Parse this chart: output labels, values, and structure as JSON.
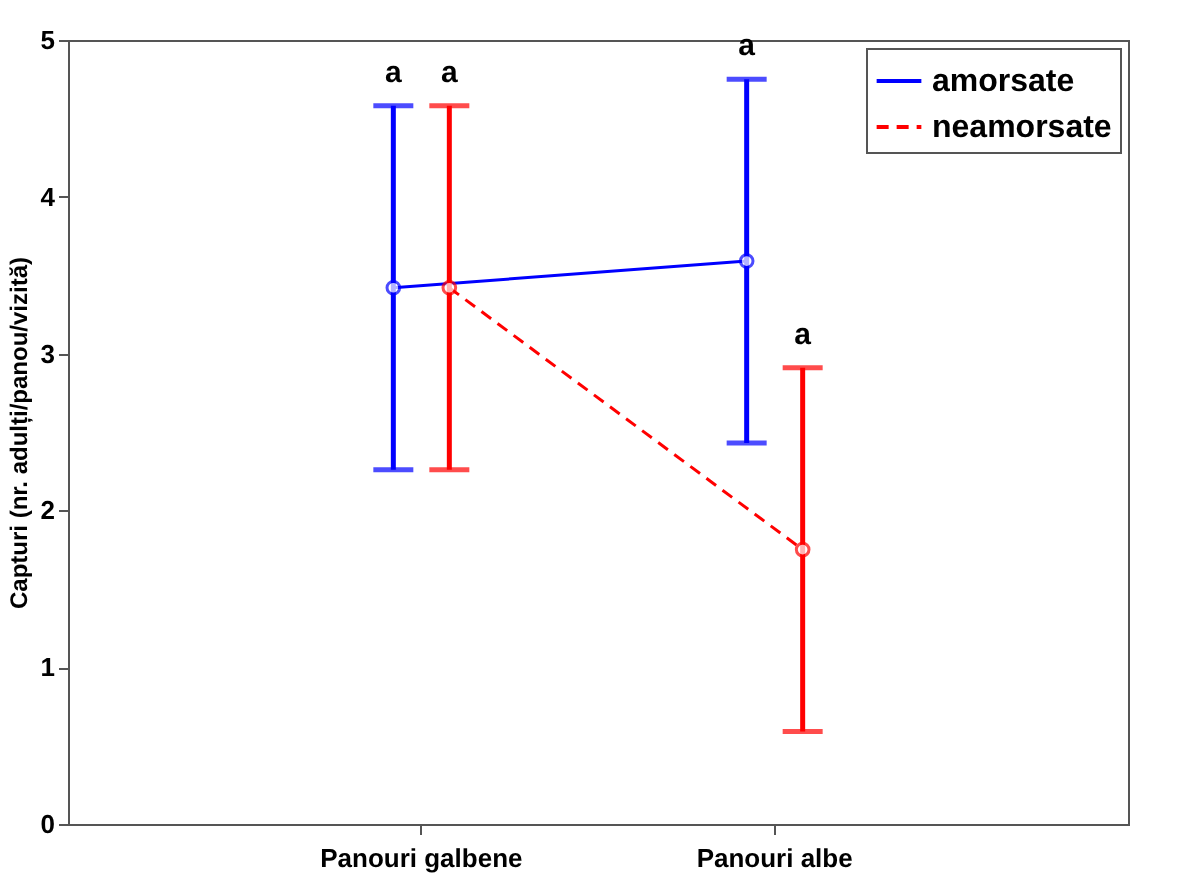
{
  "chart_data": {
    "type": "line",
    "ylabel": "Capturi (nr. adulți/panou/vizită)",
    "categories": [
      "Panouri galbene",
      "Panouri albe"
    ],
    "series": [
      {
        "name": "amorsate",
        "color": "#0000ff",
        "values": [
          3.42,
          3.59
        ],
        "errors": [
          1.16,
          1.16
        ],
        "line_style": "solid"
      },
      {
        "name": "neamorsate",
        "color": "#ff0000",
        "values": [
          3.42,
          1.75
        ],
        "errors": [
          1.16,
          1.16
        ],
        "line_style": "dashed"
      }
    ],
    "ylim": [
      0,
      5
    ],
    "yticks": [
      0,
      1,
      2,
      3,
      4,
      5
    ],
    "grid": false,
    "legend": "top right",
    "marker": "circle",
    "annotations": [
      {
        "text": "a",
        "x": "Panouri galbene",
        "y": 4.58
      },
      {
        "text": "a",
        "x": "Panouri galbene",
        "y": 4.58
      },
      {
        "text": "a",
        "x": "Panouri albe",
        "y": 4.75
      },
      {
        "text": "a",
        "x": "Panouri albe",
        "y": 2.91
      }
    ]
  }
}
